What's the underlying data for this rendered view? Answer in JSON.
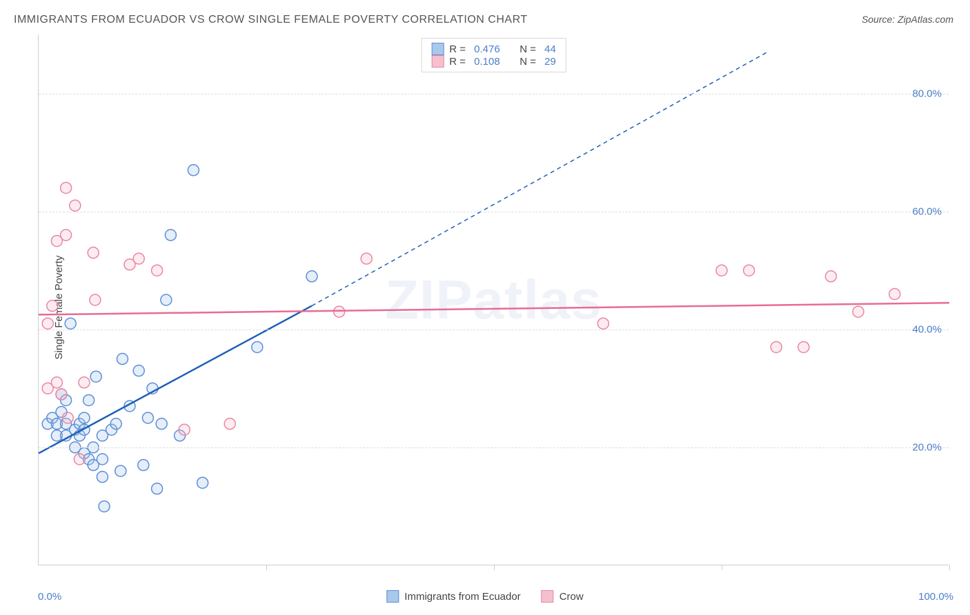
{
  "title": "IMMIGRANTS FROM ECUADOR VS CROW SINGLE FEMALE POVERTY CORRELATION CHART",
  "source_prefix": "Source: ",
  "source_name": "ZipAtlas.com",
  "ylabel": "Single Female Poverty",
  "watermark": "ZIPatlas",
  "chart": {
    "type": "scatter",
    "background_color": "#ffffff",
    "grid_color": "#dddddd",
    "axis_color": "#cccccc",
    "label_color": "#4a7ec9",
    "text_color": "#444444",
    "title_fontsize": 16,
    "label_fontsize": 15,
    "xlim": [
      0,
      100
    ],
    "ylim": [
      0,
      90
    ],
    "xtick_labels": [
      "0.0%",
      "100.0%"
    ],
    "ytick_positions": [
      20,
      40,
      60,
      80
    ],
    "ytick_labels": [
      "20.0%",
      "40.0%",
      "60.0%",
      "80.0%"
    ],
    "marker_radius": 8,
    "marker_stroke_width": 1.5,
    "marker_fill_opacity": 0.3,
    "trend_line_width": 2.5,
    "trend_dash": "6,5"
  },
  "series": [
    {
      "name": "Immigrants from Ecuador",
      "color_fill": "#a8c8ec",
      "color_stroke": "#5b8fd6",
      "trend_color": "#1f5fb8",
      "R": "0.476",
      "N": "44",
      "trend_solid": {
        "x1": 0,
        "y1": 19,
        "x2": 30,
        "y2": 44
      },
      "trend_dashed": {
        "x1": 30,
        "y1": 44,
        "x2": 80,
        "y2": 87
      },
      "points": [
        [
          1,
          24
        ],
        [
          1.5,
          25
        ],
        [
          2,
          22
        ],
        [
          2,
          24
        ],
        [
          2.5,
          26
        ],
        [
          2.5,
          29
        ],
        [
          3,
          22
        ],
        [
          3,
          24
        ],
        [
          3,
          28
        ],
        [
          3.5,
          41
        ],
        [
          4,
          20
        ],
        [
          4,
          23
        ],
        [
          4.5,
          22
        ],
        [
          4.5,
          24
        ],
        [
          5,
          19
        ],
        [
          5,
          23
        ],
        [
          5,
          25
        ],
        [
          5.5,
          18
        ],
        [
          5.5,
          28
        ],
        [
          6,
          17
        ],
        [
          6,
          20
        ],
        [
          6.3,
          32
        ],
        [
          7,
          15
        ],
        [
          7,
          18
        ],
        [
          7,
          22
        ],
        [
          7.2,
          10
        ],
        [
          8,
          23
        ],
        [
          8.5,
          24
        ],
        [
          9,
          16
        ],
        [
          9.2,
          35
        ],
        [
          10,
          27
        ],
        [
          11,
          33
        ],
        [
          11.5,
          17
        ],
        [
          12,
          25
        ],
        [
          12.5,
          30
        ],
        [
          13,
          13
        ],
        [
          13.5,
          24
        ],
        [
          14,
          45
        ],
        [
          14.5,
          56
        ],
        [
          15.5,
          22
        ],
        [
          17,
          67
        ],
        [
          18,
          14
        ],
        [
          24,
          37
        ],
        [
          30,
          49
        ]
      ]
    },
    {
      "name": "Crow",
      "color_fill": "#f5c0ce",
      "color_stroke": "#e986a3",
      "trend_color": "#e86b94",
      "R": "0.108",
      "N": "29",
      "trend_solid": {
        "x1": 0,
        "y1": 42.5,
        "x2": 100,
        "y2": 44.5
      },
      "trend_dashed": null,
      "points": [
        [
          1,
          41
        ],
        [
          1,
          30
        ],
        [
          1.5,
          44
        ],
        [
          2,
          31
        ],
        [
          2,
          55
        ],
        [
          2.5,
          29
        ],
        [
          3,
          56
        ],
        [
          3,
          64
        ],
        [
          3.2,
          25
        ],
        [
          4,
          61
        ],
        [
          4.5,
          18
        ],
        [
          5,
          31
        ],
        [
          6,
          53
        ],
        [
          6.2,
          45
        ],
        [
          10,
          51
        ],
        [
          11,
          52
        ],
        [
          13,
          50
        ],
        [
          16,
          23
        ],
        [
          21,
          24
        ],
        [
          33,
          43
        ],
        [
          36,
          52
        ],
        [
          62,
          41
        ],
        [
          75,
          50
        ],
        [
          78,
          50
        ],
        [
          81,
          37
        ],
        [
          84,
          37
        ],
        [
          87,
          49
        ],
        [
          90,
          43
        ],
        [
          94,
          46
        ]
      ]
    }
  ],
  "legend_top": {
    "R_label": "R = ",
    "N_label": "N = "
  }
}
